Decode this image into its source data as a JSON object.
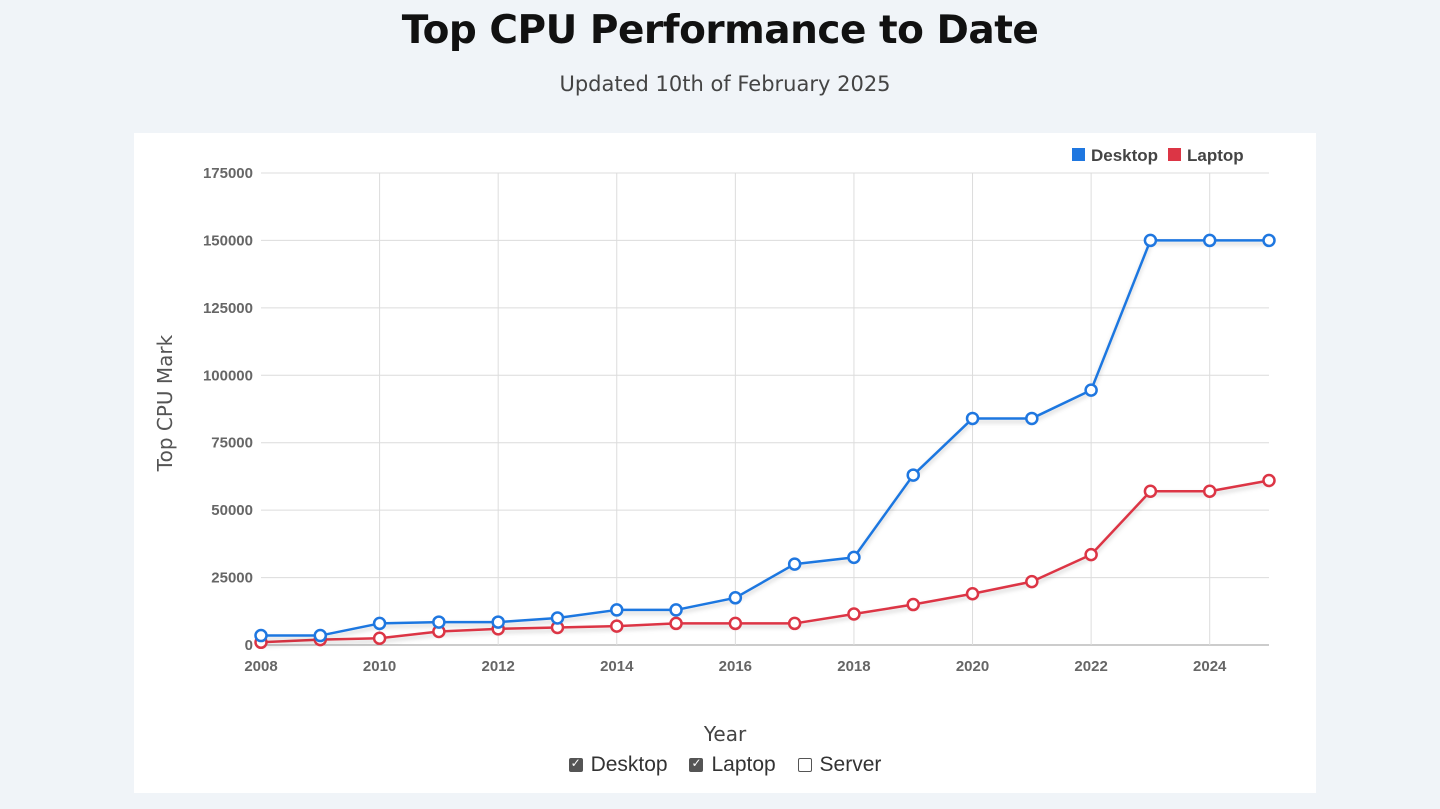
{
  "page": {
    "title": "Top CPU Performance to Date",
    "subtitle": "Updated 10th of February 2025"
  },
  "controls": [
    {
      "label": "Desktop",
      "checked": true
    },
    {
      "label": "Laptop",
      "checked": true
    },
    {
      "label": "Server",
      "checked": false
    }
  ],
  "chart_data": {
    "type": "line",
    "xlabel": "Year",
    "ylabel": "Top CPU Mark",
    "xlim": [
      2008,
      2025
    ],
    "ylim": [
      0,
      175000
    ],
    "x_ticks": [
      "2008",
      "2010",
      "2012",
      "2014",
      "2016",
      "2018",
      "2020",
      "2022",
      "2024"
    ],
    "y_ticks": [
      "0",
      "25000",
      "50000",
      "75000",
      "100000",
      "125000",
      "150000",
      "175000"
    ],
    "grid": true,
    "legend_position": "top-right",
    "x": [
      2008,
      2009,
      2010,
      2011,
      2012,
      2013,
      2014,
      2015,
      2016,
      2017,
      2018,
      2019,
      2020,
      2021,
      2022,
      2023,
      2024,
      2025
    ],
    "series": [
      {
        "name": "Desktop",
        "color": "#1f77e0",
        "values": [
          3500,
          3500,
          8000,
          8500,
          8500,
          10000,
          13000,
          13000,
          17500,
          30000,
          32500,
          63000,
          84000,
          84000,
          94500,
          150000,
          150000,
          150000
        ]
      },
      {
        "name": "Laptop",
        "color": "#dc3545",
        "values": [
          1000,
          2000,
          2500,
          5000,
          6000,
          6500,
          7000,
          8000,
          8000,
          8000,
          11500,
          15000,
          19000,
          23500,
          33500,
          57000,
          57000,
          61000
        ]
      }
    ]
  }
}
